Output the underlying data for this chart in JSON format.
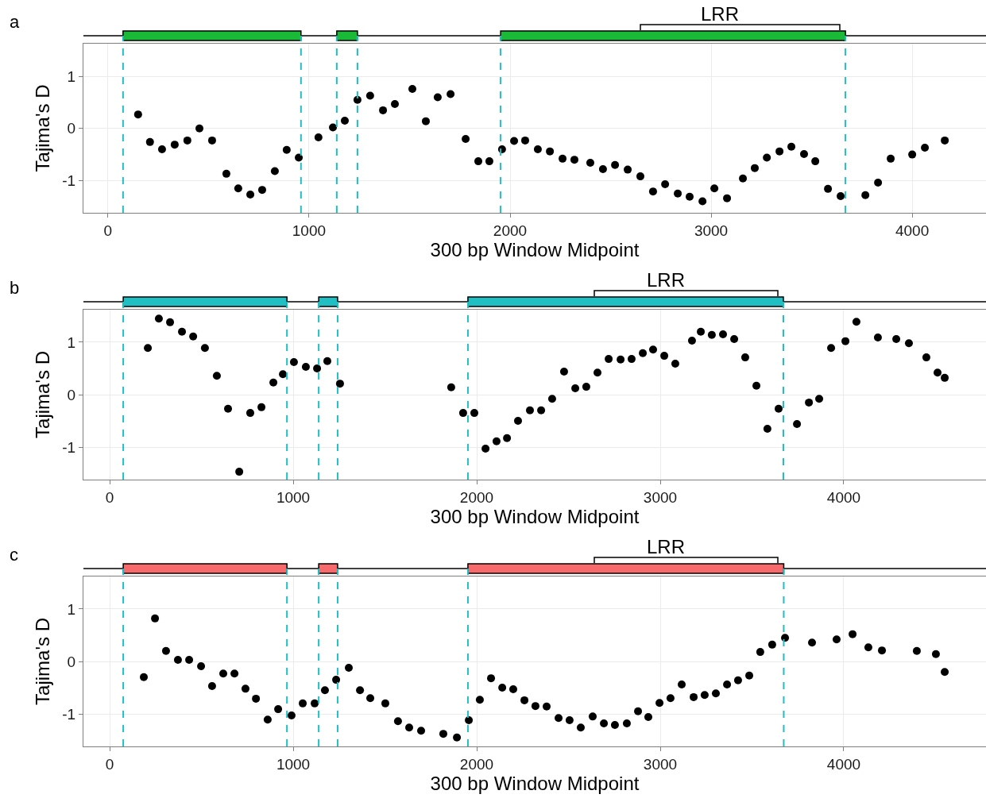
{
  "chart_data": [
    {
      "type": "scatter",
      "title": "a",
      "xlabel": "300 bp Window Midpoint",
      "ylabel": "Tajima's D",
      "xlim": [
        -122,
        4367
      ],
      "ylim": [
        -1.62,
        1.63
      ],
      "xticks": [
        0,
        1000,
        2000,
        3000,
        4000
      ],
      "yticks": [
        -1,
        0,
        1
      ],
      "grid": true,
      "marker": "circle",
      "series": [
        {
          "color": "#000000",
          "x": [
            150,
            209,
            269,
            332,
            395,
            455,
            518,
            589,
            648,
            708,
            767,
            830,
            889,
            949,
            1047,
            1119,
            1178,
            1241,
            1304,
            1368,
            1427,
            1514,
            1581,
            1640,
            1704,
            1779,
            1842,
            1897,
            1960,
            2020,
            2075,
            2138,
            2198,
            2261,
            2320,
            2399,
            2462,
            2522,
            2585,
            2648,
            2711,
            2771,
            2834,
            2893,
            2957,
            3016,
            3079,
            3158,
            3217,
            3277,
            3340,
            3399,
            3462,
            3518,
            3581,
            3644,
            3767,
            3830,
            3893,
            4000,
            4063,
            4162
          ],
          "values": [
            0.27,
            -0.26,
            -0.4,
            -0.31,
            -0.23,
            0.0,
            -0.23,
            -0.87,
            -1.15,
            -1.27,
            -1.18,
            -0.82,
            -0.41,
            -0.56,
            -0.17,
            0.02,
            0.15,
            0.55,
            0.63,
            0.35,
            0.47,
            0.76,
            0.14,
            0.6,
            0.66,
            -0.2,
            -0.63,
            -0.63,
            -0.4,
            -0.24,
            -0.23,
            -0.4,
            -0.44,
            -0.58,
            -0.6,
            -0.66,
            -0.78,
            -0.7,
            -0.79,
            -0.92,
            -1.21,
            -1.07,
            -1.25,
            -1.31,
            -1.4,
            -1.15,
            -1.34,
            -0.96,
            -0.76,
            -0.56,
            -0.44,
            -0.35,
            -0.49,
            -0.63,
            -1.16,
            -1.3,
            -1.28,
            -1.04,
            -0.58,
            -0.5,
            -0.37,
            -0.23
          ]
        }
      ],
      "ref_lines": [
        {
          "axis": "x",
          "value": 75,
          "color": "#1fbfc4",
          "line_style": "dashed"
        },
        {
          "axis": "x",
          "value": 960,
          "color": "#1fbfc4",
          "line_style": "dashed"
        },
        {
          "axis": "x",
          "value": 1138,
          "color": "#1fbfc4",
          "line_style": "dashed"
        },
        {
          "axis": "x",
          "value": 1241,
          "color": "#1fbfc4",
          "line_style": "dashed"
        },
        {
          "axis": "x",
          "value": 1953,
          "color": "#1fbfc4",
          "line_style": "dashed"
        },
        {
          "axis": "x",
          "value": 3668,
          "color": "#1fbfc4",
          "line_style": "dashed"
        }
      ],
      "annotations": [
        "LRR"
      ]
    },
    {
      "type": "scatter",
      "title": "b",
      "xlabel": "300 bp Window Midpoint",
      "ylabel": "Tajima's D",
      "xlim": [
        -143,
        4775
      ],
      "ylim": [
        -1.62,
        1.62
      ],
      "xticks": [
        0,
        1000,
        2000,
        3000,
        4000
      ],
      "yticks": [
        -1,
        0,
        1
      ],
      "grid": true,
      "marker": "circle",
      "series": [
        {
          "color": "#000000",
          "x": [
            208,
            268,
            329,
            394,
            455,
            519,
            584,
            645,
            706,
            766,
            827,
            892,
            944,
            1004,
            1069,
            1130,
            1186,
            1255,
            1861,
            1926,
            1987,
            2048,
            2108,
            2165,
            2225,
            2290,
            2351,
            2411,
            2476,
            2537,
            2597,
            2658,
            2719,
            2784,
            2844,
            2905,
            2961,
            3022,
            3082,
            3173,
            3221,
            3281,
            3342,
            3403,
            3463,
            3524,
            3584,
            3645,
            3745,
            3810,
            3866,
            3931,
            4009,
            4069,
            4186,
            4286,
            4355,
            4450,
            4511,
            4550
          ],
          "values": [
            0.89,
            1.45,
            1.38,
            1.2,
            1.11,
            0.89,
            0.36,
            -0.27,
            -1.47,
            -0.35,
            -0.24,
            0.23,
            0.39,
            0.62,
            0.53,
            0.5,
            0.64,
            0.21,
            0.14,
            -0.35,
            -0.35,
            -1.03,
            -0.89,
            -0.83,
            -0.5,
            -0.3,
            -0.3,
            -0.08,
            0.44,
            0.12,
            0.15,
            0.42,
            0.68,
            0.67,
            0.68,
            0.79,
            0.86,
            0.74,
            0.59,
            1.03,
            1.2,
            1.14,
            1.15,
            1.06,
            0.71,
            0.17,
            -0.65,
            -0.27,
            -0.56,
            -0.15,
            -0.08,
            0.89,
            1.02,
            1.39,
            1.09,
            1.06,
            0.98,
            0.71,
            0.42,
            0.32
          ]
        }
      ],
      "ref_lines": [
        {
          "axis": "x",
          "value": 74,
          "color": "#1fbfc4",
          "line_style": "dashed"
        },
        {
          "axis": "x",
          "value": 966,
          "color": "#1fbfc4",
          "line_style": "dashed"
        },
        {
          "axis": "x",
          "value": 1139,
          "color": "#1fbfc4",
          "line_style": "dashed"
        },
        {
          "axis": "x",
          "value": 1242,
          "color": "#1fbfc4",
          "line_style": "dashed"
        },
        {
          "axis": "x",
          "value": 1952,
          "color": "#1fbfc4",
          "line_style": "dashed"
        },
        {
          "axis": "x",
          "value": 3671,
          "color": "#1fbfc4",
          "line_style": "dashed"
        }
      ],
      "annotations": [
        "LRR"
      ]
    },
    {
      "type": "scatter",
      "title": "c",
      "xlabel": "300 bp Window Midpoint",
      "ylabel": "Tajima's D",
      "xlim": [
        -143,
        4775
      ],
      "ylim": [
        -1.62,
        1.62
      ],
      "xticks": [
        0,
        1000,
        2000,
        3000,
        4000
      ],
      "yticks": [
        -1,
        0,
        1
      ],
      "grid": true,
      "marker": "circle",
      "series": [
        {
          "color": "#000000",
          "x": [
            186,
            247,
            307,
            372,
            433,
            498,
            558,
            619,
            680,
            740,
            797,
            861,
            918,
            991,
            1052,
            1117,
            1173,
            1234,
            1303,
            1364,
            1420,
            1502,
            1571,
            1632,
            1697,
            1818,
            1892,
            1957,
            2017,
            2078,
            2139,
            2199,
            2260,
            2320,
            2381,
            2446,
            2506,
            2567,
            2632,
            2693,
            2753,
            2818,
            2879,
            2935,
            2996,
            3056,
            3117,
            3182,
            3242,
            3303,
            3364,
            3424,
            3485,
            3545,
            3610,
            3680,
            3827,
            3961,
            4048,
            4134,
            4208,
            4398,
            4502,
            4550
          ],
          "values": [
            -0.3,
            0.82,
            0.2,
            0.03,
            0.03,
            -0.09,
            -0.47,
            -0.23,
            -0.23,
            -0.52,
            -0.71,
            -1.11,
            -0.91,
            -1.03,
            -0.8,
            -0.8,
            -0.55,
            -0.35,
            -0.12,
            -0.55,
            -0.7,
            -0.8,
            -1.14,
            -1.26,
            -1.32,
            -1.38,
            -1.45,
            -1.12,
            -0.73,
            -0.32,
            -0.5,
            -0.53,
            -0.74,
            -0.85,
            -0.86,
            -1.08,
            -1.12,
            -1.26,
            -1.05,
            -1.18,
            -1.21,
            -1.18,
            -0.95,
            -1.06,
            -0.79,
            -0.7,
            -0.44,
            -0.68,
            -0.64,
            -0.61,
            -0.44,
            -0.36,
            -0.27,
            0.18,
            0.32,
            0.45,
            0.36,
            0.42,
            0.52,
            0.27,
            0.21,
            0.2,
            0.14,
            -0.2
          ]
        }
      ],
      "ref_lines": [
        {
          "axis": "x",
          "value": 74,
          "color": "#1fbfc4",
          "line_style": "dashed"
        },
        {
          "axis": "x",
          "value": 966,
          "color": "#1fbfc4",
          "line_style": "dashed"
        },
        {
          "axis": "x",
          "value": 1139,
          "color": "#1fbfc4",
          "line_style": "dashed"
        },
        {
          "axis": "x",
          "value": 1242,
          "color": "#1fbfc4",
          "line_style": "dashed"
        },
        {
          "axis": "x",
          "value": 1952,
          "color": "#1fbfc4",
          "line_style": "dashed"
        },
        {
          "axis": "x",
          "value": 3673,
          "color": "#1fbfc4",
          "line_style": "dashed"
        }
      ],
      "annotations": [
        "LRR"
      ]
    }
  ]
}
